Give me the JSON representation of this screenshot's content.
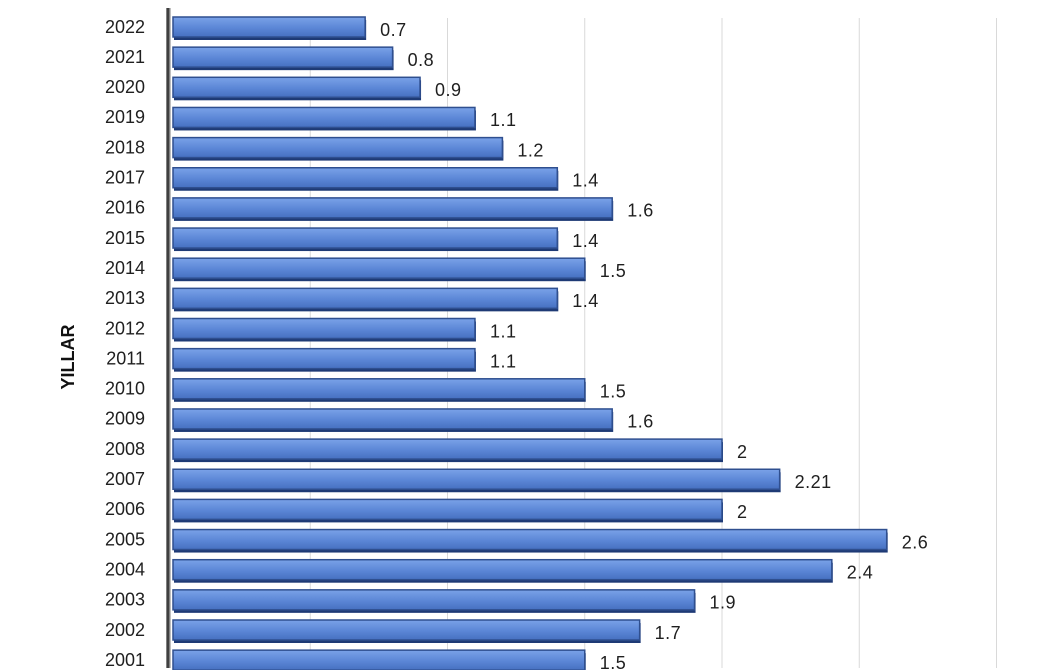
{
  "chart_data": {
    "type": "bar",
    "orientation": "horizontal",
    "ylabel": "YILLAR",
    "xlabel": "",
    "title": "",
    "categories": [
      "2022",
      "2021",
      "2020",
      "2019",
      "2018",
      "2017",
      "2016",
      "2015",
      "2014",
      "2013",
      "2012",
      "2011",
      "2010",
      "2009",
      "2008",
      "2007",
      "2006",
      "2005",
      "2004",
      "2003",
      "2002",
      "2001"
    ],
    "values": [
      0.7,
      0.8,
      0.9,
      1.1,
      1.2,
      1.4,
      1.6,
      1.4,
      1.5,
      1.4,
      1.1,
      1.1,
      1.5,
      1.6,
      2,
      2.21,
      2,
      2.6,
      2.4,
      1.9,
      1.7,
      1.5
    ],
    "data_labels": [
      "0.7",
      "0.8",
      "0.9",
      "1.1",
      "1.2",
      "1.4",
      "1.6",
      "1.4",
      "1.5",
      "1.4",
      "1.1",
      "1.1",
      "1.5",
      "1.6",
      "2",
      "2.21",
      "2",
      "2.6",
      "2.4",
      "1.9",
      "1.7",
      "1.5"
    ],
    "xlim": [
      0,
      3
    ],
    "grid": true,
    "colors": {
      "bar_fill": "#5b86d6",
      "bar_edge": "#2f4f8f",
      "bar_shadow": "#1e3a75",
      "grid": "#d9d9d9",
      "axis": "#404040"
    }
  }
}
